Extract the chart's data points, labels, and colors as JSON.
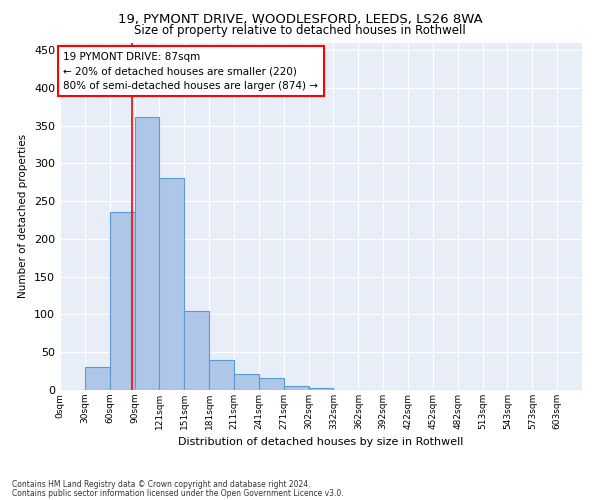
{
  "title_line1": "19, PYMONT DRIVE, WOODLESFORD, LEEDS, LS26 8WA",
  "title_line2": "Size of property relative to detached houses in Rothwell",
  "xlabel": "Distribution of detached houses by size in Rothwell",
  "ylabel": "Number of detached properties",
  "bar_labels": [
    "0sqm",
    "30sqm",
    "60sqm",
    "90sqm",
    "121sqm",
    "151sqm",
    "181sqm",
    "211sqm",
    "241sqm",
    "271sqm",
    "302sqm",
    "332sqm",
    "362sqm",
    "392sqm",
    "422sqm",
    "452sqm",
    "482sqm",
    "513sqm",
    "543sqm",
    "573sqm",
    "603sqm"
  ],
  "bar_values": [
    0,
    30,
    235,
    362,
    280,
    105,
    40,
    21,
    16,
    5,
    3,
    0,
    0,
    0,
    0,
    0,
    0,
    0,
    0,
    0,
    0
  ],
  "bar_color": "#aec6e8",
  "bar_edge_color": "#5b9bd5",
  "background_color": "#e8eef7",
  "grid_color": "#ffffff",
  "ylim": [
    0,
    460
  ],
  "yticks": [
    0,
    50,
    100,
    150,
    200,
    250,
    300,
    350,
    400,
    450
  ],
  "property_line_x": 87,
  "annotation_text": "19 PYMONT DRIVE: 87sqm\n← 20% of detached houses are smaller (220)\n80% of semi-detached houses are larger (874) →",
  "annotation_box_color": "white",
  "annotation_box_edge": "red",
  "vline_color": "red",
  "footer_line1": "Contains HM Land Registry data © Crown copyright and database right 2024.",
  "footer_line2": "Contains public sector information licensed under the Open Government Licence v3.0."
}
